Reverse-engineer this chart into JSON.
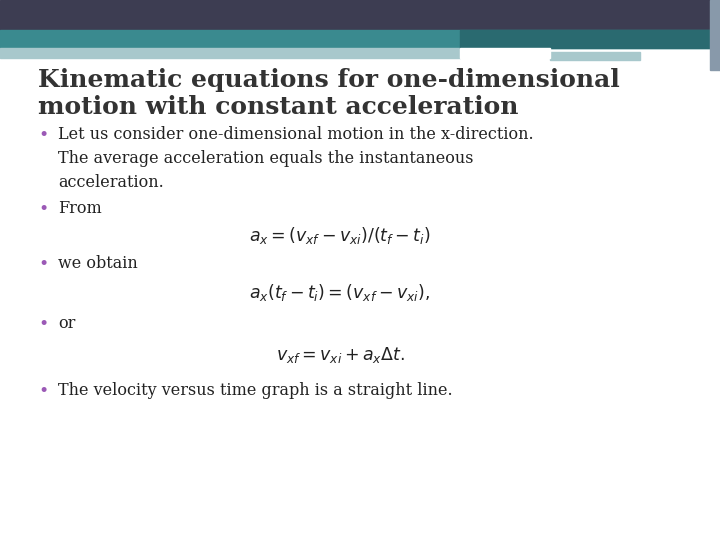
{
  "bg_color": "#ffffff",
  "header_dark_color": "#3d3d52",
  "header_teal_color": "#3a8a8f",
  "header_light_color": "#a8c8cc",
  "title_line1": "Kinematic equations for one-dimensional",
  "title_line2": "motion with constant acceleration",
  "title_color": "#333333",
  "title_fontsize": 18,
  "bullet_color": "#9b59b6",
  "text_color": "#222222",
  "body_fontsize": 11.5,
  "eq1": "$a_x = (v_{xf} - v_{xi})/(t_f - t_i)$",
  "eq2": "$a_x(t_f - t_i) = (v_{xf} - v_{xi}),$",
  "eq3": "$v_{xf} = v_{xi} + a_x\\Delta t.$",
  "bullet5": "The velocity versus time graph is a straight line."
}
